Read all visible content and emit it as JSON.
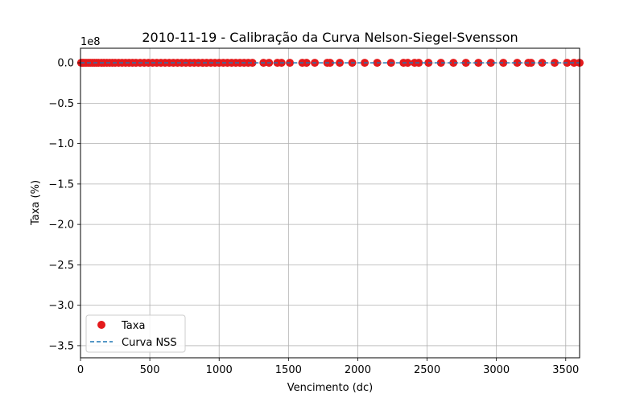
{
  "chart_data": {
    "type": "scatter",
    "title": "2010-11-19 - Calibração da Curva Nelson-Siegel-Svensson",
    "xlabel": "Vencimento (dc)",
    "ylabel": "Taxa (%)",
    "y_offset_text": "1e8",
    "xlim": [
      0,
      3600
    ],
    "ylim": [
      -3.65,
      0.18
    ],
    "y_scale_multiplier": 100000000,
    "grid": true,
    "legend_position": "lower-left",
    "xticks": [
      "0",
      "500",
      "1000",
      "1500",
      "2000",
      "2500",
      "3000",
      "3500"
    ],
    "yticks": [
      "0.0",
      "−0.5",
      "−1.0",
      "−1.5",
      "−2.0",
      "−2.5",
      "−3.0",
      "−3.5"
    ],
    "xtick_values": [
      0,
      500,
      1000,
      1500,
      2000,
      2500,
      3000,
      3500
    ],
    "ytick_values": [
      0,
      -0.5,
      -1.0,
      -1.5,
      -2.0,
      -2.5,
      -3.0,
      -3.5
    ],
    "series": [
      {
        "name": "Taxa",
        "kind": "scatter",
        "color": "#e41a1c",
        "x": [
          5,
          15,
          25,
          40,
          55,
          70,
          85,
          100,
          115,
          130,
          150,
          170,
          190,
          210,
          230,
          250,
          275,
          300,
          325,
          350,
          375,
          400,
          430,
          460,
          490,
          520,
          550,
          580,
          610,
          640,
          670,
          700,
          730,
          760,
          790,
          820,
          850,
          880,
          910,
          940,
          970,
          1000,
          1030,
          1060,
          1090,
          1120,
          1150,
          1180,
          1210,
          1240,
          1320,
          1360,
          1420,
          1450,
          1510,
          1600,
          1630,
          1690,
          1780,
          1800,
          1870,
          1960,
          2050,
          2140,
          2240,
          2330,
          2360,
          2410,
          2440,
          2510,
          2600,
          2690,
          2780,
          2870,
          2960,
          3050,
          3150,
          3230,
          3250,
          3330,
          3420,
          3510,
          3560,
          3600
        ],
        "y": [
          0,
          0,
          0,
          0,
          0,
          0,
          0,
          0,
          0,
          0,
          0,
          0,
          0,
          0,
          0,
          0,
          0,
          0,
          0,
          0,
          0,
          0,
          0,
          0,
          0,
          0,
          0,
          0,
          0,
          0,
          0,
          0,
          0,
          0,
          0,
          0,
          0,
          0,
          0,
          0,
          0,
          0,
          0,
          0,
          0,
          0,
          0,
          0,
          0,
          0,
          0,
          0,
          0,
          0,
          0,
          0,
          0,
          0,
          0,
          0,
          0,
          0,
          0,
          0,
          0,
          0,
          0,
          0,
          0,
          0,
          0,
          0,
          0,
          0,
          0,
          0,
          0,
          0,
          0,
          0,
          0,
          0,
          0,
          0
        ]
      },
      {
        "name": "Curva NSS",
        "kind": "line",
        "style": "dashed",
        "color": "#1f77b4",
        "x": [
          0,
          500,
          1000,
          1500,
          2000,
          2500,
          3000,
          3500,
          3600
        ],
        "y": [
          0,
          0,
          0,
          0,
          0,
          0,
          0,
          0,
          0
        ]
      }
    ]
  }
}
